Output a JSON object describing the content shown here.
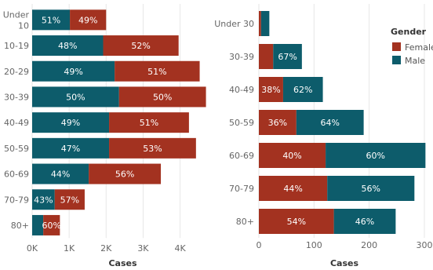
{
  "chart_data": [
    {
      "type": "bar",
      "orientation": "horizontal",
      "stacked": true,
      "title": "",
      "xlabel": "Cases",
      "ylabel": "",
      "categories": [
        "Under 10",
        "10-19",
        "20-29",
        "30-39",
        "40-49",
        "50-59",
        "60-69",
        "70-79",
        "80+"
      ],
      "xticks": [
        0,
        1000,
        2000,
        3000,
        4000
      ],
      "xtick_labels": [
        "0K",
        "1K",
        "2K",
        "3K",
        "4K"
      ],
      "xlim": [
        0,
        4900
      ],
      "grid": true,
      "series": [
        {
          "name": "Male",
          "values": [
            1020,
            1920,
            2230,
            2350,
            2080,
            2080,
            1530,
            610,
            300
          ],
          "labels": [
            "51%",
            "48%",
            "49%",
            "50%",
            "49%",
            "47%",
            "44%",
            "43%",
            ""
          ]
        },
        {
          "name": "Female",
          "values": [
            980,
            2040,
            2300,
            2350,
            2160,
            2350,
            1950,
            810,
            450
          ],
          "labels": [
            "49%",
            "52%",
            "51%",
            "50%",
            "51%",
            "53%",
            "56%",
            "57%",
            "60%"
          ]
        }
      ]
    },
    {
      "type": "bar",
      "orientation": "horizontal",
      "stacked": true,
      "title": "",
      "xlabel": "Cases",
      "ylabel": "",
      "categories": [
        "Under 30",
        "30-39",
        "40-49",
        "50-59",
        "60-69",
        "70-79",
        "80+"
      ],
      "xticks": [
        0,
        100,
        200,
        300
      ],
      "xtick_labels": [
        "0",
        "100",
        "200",
        "300"
      ],
      "xlim": [
        0,
        310
      ],
      "grid": true,
      "legend": {
        "title": "Gender",
        "position": "top-right"
      },
      "series": [
        {
          "name": "Female",
          "values": [
            4,
            26,
            44,
            68,
            121,
            124,
            136
          ],
          "labels": [
            "",
            "",
            "38%",
            "36%",
            "40%",
            "44%",
            "54%"
          ]
        },
        {
          "name": "Male",
          "values": [
            15,
            52,
            72,
            122,
            181,
            158,
            112
          ],
          "labels": [
            "",
            "67%",
            "62%",
            "64%",
            "60%",
            "56%",
            "46%"
          ]
        }
      ]
    }
  ],
  "colors": {
    "male": "#0d5c6b",
    "female": "#a33220",
    "grid": "#e6e6e6"
  }
}
